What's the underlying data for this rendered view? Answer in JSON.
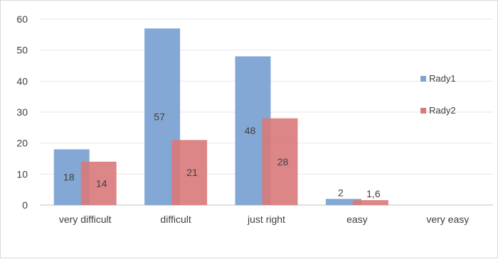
{
  "chart_data": {
    "type": "bar",
    "categories": [
      "very difficult",
      "difficult",
      "just right",
      "easy",
      "very easy"
    ],
    "series": [
      {
        "name": "Rady1",
        "values": [
          18,
          57,
          48,
          2,
          null
        ],
        "labels": [
          "18",
          "57",
          "48",
          "2",
          ""
        ],
        "color": "#7da3d3"
      },
      {
        "name": "Rady2",
        "values": [
          14,
          21,
          28,
          1.6,
          null
        ],
        "labels": [
          "14",
          "21",
          "28",
          "1,6",
          ""
        ],
        "color": "#d9797a"
      }
    ],
    "ylim": [
      0,
      60
    ],
    "yticks": [
      0,
      10,
      20,
      30,
      40,
      50,
      60
    ],
    "grid": true,
    "legend_position": "right",
    "title": "",
    "xlabel": "",
    "ylabel": ""
  }
}
